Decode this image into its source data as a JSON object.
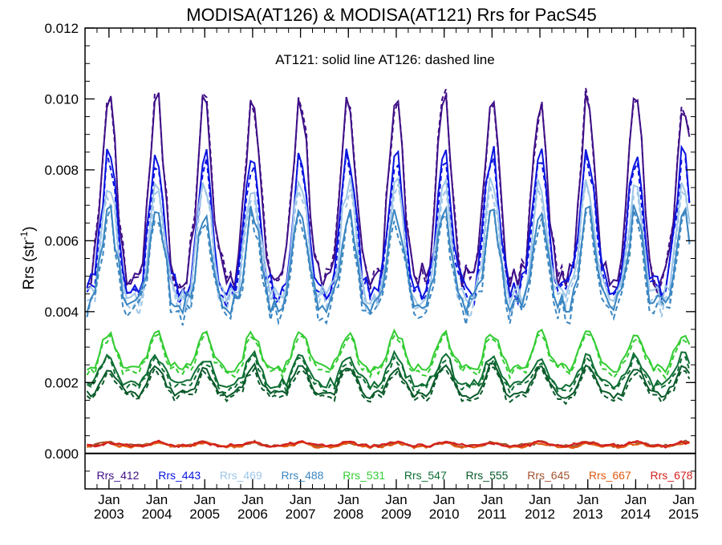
{
  "chart_data": {
    "type": "line",
    "title": "MODISA(AT126) & MODISA(AT121)  Rrs for PacS45",
    "ylabel": "Rrs (str",
    "ylabel_sup": "-1",
    "ylabel_close": ")",
    "annotation": "AT121: solid line   AT126: dashed line",
    "ylim": [
      -0.001,
      0.012
    ],
    "y_ticks": [
      0.0,
      0.002,
      0.004,
      0.006,
      0.008,
      0.01,
      0.012
    ],
    "y_tick_labels": [
      "0.000",
      "0.002",
      "0.004",
      "0.006",
      "0.008",
      "0.010",
      "0.012"
    ],
    "xlim": [
      2002.5,
      2015.25
    ],
    "x_ticks": [
      2003,
      2004,
      2005,
      2006,
      2007,
      2008,
      2009,
      2010,
      2011,
      2012,
      2013,
      2014,
      2015
    ],
    "x_tick_month": "Jan",
    "x_tick_years": [
      "2003",
      "2004",
      "2005",
      "2006",
      "2007",
      "2008",
      "2009",
      "2010",
      "2011",
      "2012",
      "2013",
      "2014",
      "2015"
    ],
    "zero_line": true,
    "legend_placement": "bottom inside",
    "line_styles": {
      "AT121": "solid",
      "AT126": "dashed"
    },
    "series": [
      {
        "name": "Rrs_412",
        "color": "#3f0f87",
        "base": 0.0065,
        "amp": 0.0025,
        "jitter": 0.0004,
        "off": 0.0
      },
      {
        "name": "Rrs_443",
        "color": "#0a14e0",
        "base": 0.0058,
        "amp": 0.0019,
        "jitter": 0.00035,
        "off": -0.0002
      },
      {
        "name": "Rrs_469",
        "color": "#9ec6e8",
        "base": 0.0054,
        "amp": 0.0016,
        "jitter": 0.0003,
        "off": -0.0002
      },
      {
        "name": "Rrs_488",
        "color": "#3a86c2",
        "base": 0.005,
        "amp": 0.0013,
        "jitter": 0.0003,
        "off": -0.0002
      },
      {
        "name": "Rrs_531",
        "color": "#33cc33",
        "base": 0.0027,
        "amp": 0.0005,
        "jitter": 0.00015,
        "off": -0.0001
      },
      {
        "name": "Rrs_547",
        "color": "#0d6e33",
        "base": 0.0022,
        "amp": 0.0004,
        "jitter": 0.00015,
        "off": -0.0001
      },
      {
        "name": "Rrs_555",
        "color": "#0a5a2a",
        "base": 0.0019,
        "amp": 0.0004,
        "jitter": 0.00012,
        "off": -0.0001
      },
      {
        "name": "Rrs_645",
        "color": "#a0522d",
        "base": 0.00025,
        "amp": 5e-05,
        "jitter": 4e-05,
        "off": 0.0
      },
      {
        "name": "Rrs_667",
        "color": "#e05a10",
        "base": 0.00022,
        "amp": 5e-05,
        "jitter": 4e-05,
        "off": 0.0
      },
      {
        "name": "Rrs_678",
        "color": "#d42020",
        "base": 0.00025,
        "amp": 5e-05,
        "jitter": 4e-05,
        "off": 0.0
      }
    ]
  }
}
